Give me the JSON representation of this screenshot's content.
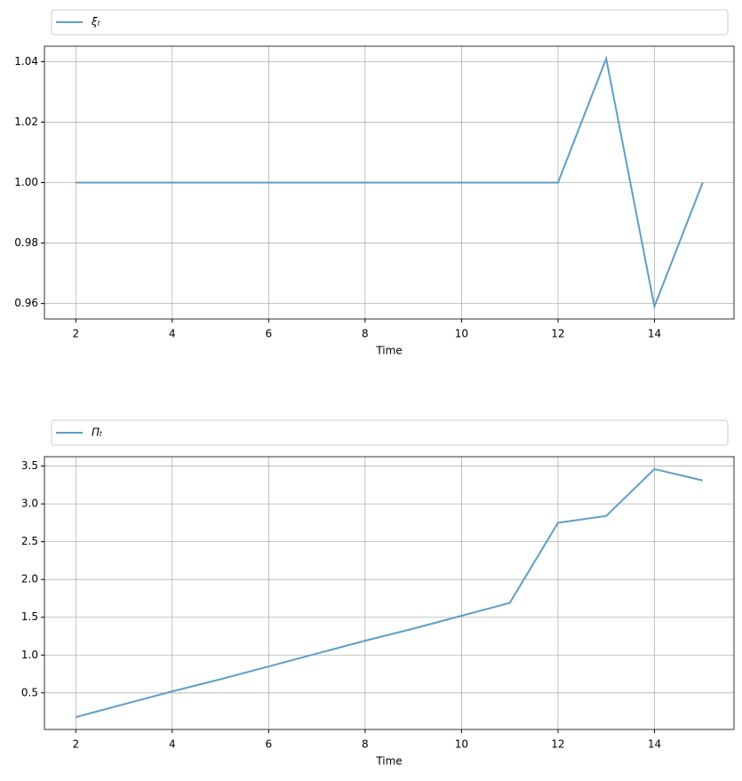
{
  "chart_data": [
    {
      "type": "line",
      "xlabel": "Time",
      "x": [
        2,
        3,
        4,
        5,
        6,
        7,
        8,
        9,
        10,
        11,
        12,
        13,
        14,
        15
      ],
      "series": [
        {
          "name": "ξₜ",
          "color": "#5f9dc8",
          "values": [
            1.0,
            1.0,
            1.0,
            1.0,
            1.0,
            1.0,
            1.0,
            1.0,
            1.0,
            1.0,
            1.0,
            1.041,
            0.959,
            1.0
          ]
        }
      ],
      "xlim": [
        1.35,
        15.65
      ],
      "xticks": [
        2,
        4,
        6,
        8,
        10,
        12,
        14
      ],
      "ylim": [
        0.9549,
        1.0451
      ],
      "yticks": [
        {
          "value": 0.96,
          "label": "0.96"
        },
        {
          "value": 0.98,
          "label": "0.98"
        },
        {
          "value": 1.0,
          "label": "1.00"
        },
        {
          "value": 1.02,
          "label": "1.02"
        },
        {
          "value": 1.04,
          "label": "1.04"
        }
      ],
      "grid": true,
      "legend": "top"
    },
    {
      "type": "line",
      "xlabel": "Time",
      "x": [
        2,
        3,
        4,
        5,
        6,
        7,
        8,
        9,
        10,
        11,
        12,
        13,
        14,
        15
      ],
      "series": [
        {
          "name": "Πₜ",
          "color": "#5f9dc8",
          "values": [
            0.18,
            0.35,
            0.52,
            0.68,
            0.85,
            1.02,
            1.19,
            1.35,
            1.52,
            1.69,
            2.75,
            2.84,
            3.46,
            3.31
          ]
        }
      ],
      "xlim": [
        1.35,
        15.65
      ],
      "xticks": [
        2,
        4,
        6,
        8,
        10,
        12,
        14
      ],
      "ylim": [
        0.016,
        3.624
      ],
      "yticks": [
        0.5,
        {
          "value": 1.0,
          "label": "1.0"
        },
        1.5,
        {
          "value": 2.0,
          "label": "2.0"
        },
        2.5,
        {
          "value": 3.0,
          "label": "3.0"
        },
        3.5
      ],
      "grid": true,
      "legend": "top"
    }
  ]
}
